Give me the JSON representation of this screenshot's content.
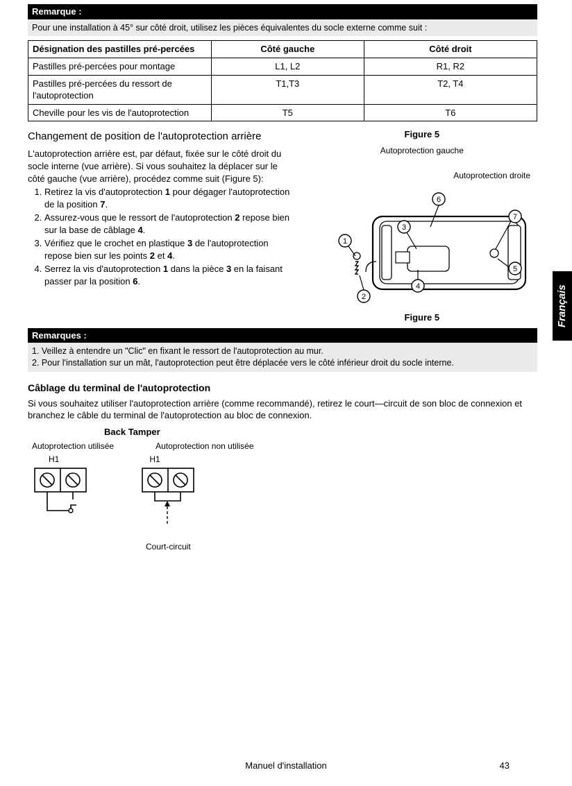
{
  "remarque": {
    "title": "Remarque :",
    "text": "Pour une installation à 45° sur côté droit, utilisez les pièces équivalentes du socle externe comme suit :"
  },
  "table": {
    "headers": {
      "col1": "Désignation des pastilles pré-percées",
      "col2": "Côté gauche",
      "col3": "Côté droit"
    },
    "rows": [
      {
        "c1": "Pastilles pré-percées  pour montage",
        "c2": "L1, L2",
        "c3": "R1, R2"
      },
      {
        "c1": "Pastilles pré-percées du ressort de l'autoprotection",
        "c2": "T1,T3",
        "c3": "T2, T4"
      },
      {
        "c1": "Cheville pour les vis de l'autoprotection",
        "c2": "T5",
        "c3": "T6"
      }
    ]
  },
  "section1": {
    "title": "Changement de position de l'autoprotection arrière",
    "intro": "L'autoprotection arrière est, par défaut, fixée sur le côté droit du socle interne (vue arrière). Si vous souhaitez la déplacer sur le côté gauche (vue arrière), procédez comme suit  (Figure  5):",
    "steps": [
      "Retirez la vis d'autoprotection <b>1</b> pour dégager l'autoprotection de la position <b>7</b>.",
      "Assurez-vous que le ressort de l'autoprotection <b>2</b> repose bien sur la base de câblage <b>4</b>.",
      "Vérifiez que le crochet en plastique <b>3</b> de l'autoprotection repose bien sur les points <b>2</b> et <b>4</b>.",
      "Serrez la vis d'autoprotection <b>1</b> dans la pièce <b>3</b> en la faisant passer par la position <b>6</b>."
    ]
  },
  "figure5": {
    "caption_top": "Figure 5",
    "label_left": "Autoprotection gauche",
    "label_right": "Autoprotection droite",
    "caption_bottom": "Figure 5",
    "callouts": [
      "1",
      "2",
      "3",
      "4",
      "5",
      "6",
      "7"
    ]
  },
  "remarques2": {
    "title": "Remarques :",
    "lines": [
      "1.  Veillez à entendre un \"Clic\" en fixant le ressort de l'autoprotection au mur.",
      "2.  Pour l'installation sur un mât, l'autoprotection peut être déplacée vers le côté inférieur droit du socle interne."
    ]
  },
  "section2": {
    "title": "Câblage du terminal de l'autoprotection",
    "text": "Si vous souhaitez utiliser l'autoprotection arrière (comme recommandé), retirez le court—circuit de son bloc de connexion et branchez le câble du terminal de l'autoprotection au bloc de connexion."
  },
  "backTamper": {
    "title": "Back Tamper",
    "used": "Autoprotection utilisée",
    "unused": "Autoprotection non utilisée",
    "h1": "H1",
    "short": "Court-circuit"
  },
  "sidebar": "Français",
  "footer": {
    "title": "Manuel d'installation",
    "page": "43"
  }
}
